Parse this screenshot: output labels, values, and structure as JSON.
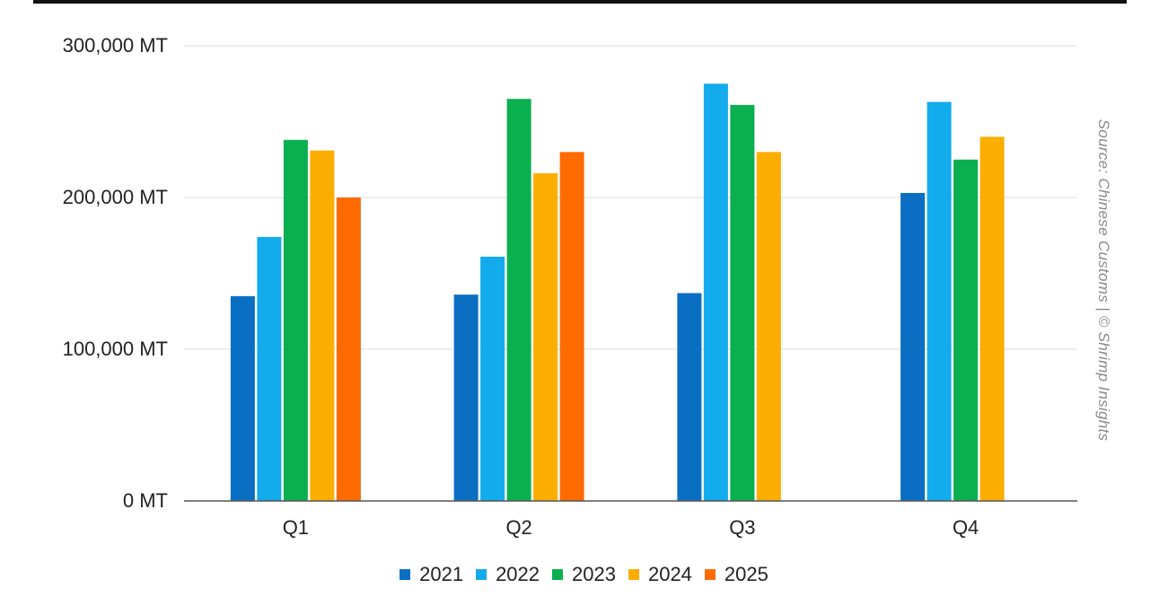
{
  "colors": {
    "2021": "#0a6fc2",
    "2022": "#12abec",
    "2023": "#0aaf4f",
    "2024": "#fcae00",
    "2025": "#ff6b00",
    "grid": "#dcdcdc",
    "axis": "#555555",
    "text": "#222222"
  },
  "source_note": "Source: Chinese Customs | © Shrimp Insights",
  "chart_data": {
    "type": "bar",
    "categories": [
      "Q1",
      "Q2",
      "Q3",
      "Q4"
    ],
    "series": [
      {
        "name": "2021",
        "values": [
          135000,
          136000,
          137000,
          203000
        ]
      },
      {
        "name": "2022",
        "values": [
          174000,
          161000,
          275000,
          263000
        ]
      },
      {
        "name": "2023",
        "values": [
          238000,
          265000,
          261000,
          225000
        ]
      },
      {
        "name": "2024",
        "values": [
          231000,
          216000,
          230000,
          240000
        ]
      },
      {
        "name": "2025",
        "values": [
          200000,
          230000,
          null,
          null
        ]
      }
    ],
    "ylim": [
      0,
      300000
    ],
    "yticks": [
      0,
      100000,
      200000,
      300000
    ],
    "ytick_labels": [
      "0 MT",
      "100,000 MT",
      "200,000 MT",
      "300,000 MT"
    ],
    "title": "",
    "xlabel": "",
    "ylabel": "",
    "grid": true,
    "legend": "bottom"
  }
}
